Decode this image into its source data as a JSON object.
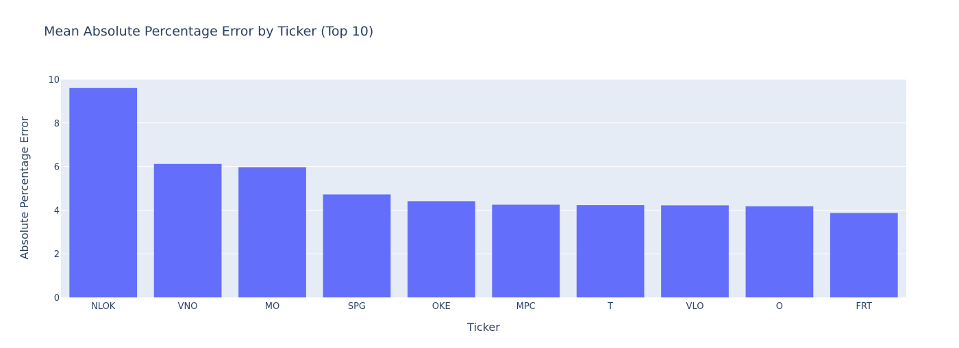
{
  "chart_data": {
    "type": "bar",
    "title": "Mean Absolute Percentage Error by Ticker (Top 10)",
    "xlabel": "Ticker",
    "ylabel": "Absolute Percentage Error",
    "categories": [
      "NLOK",
      "VNO",
      "MO",
      "SPG",
      "OKE",
      "MPC",
      "T",
      "VLO",
      "O",
      "FRT"
    ],
    "values": [
      9.6,
      6.12,
      5.97,
      4.72,
      4.41,
      4.25,
      4.23,
      4.22,
      4.18,
      3.87
    ],
    "ylim": [
      0,
      10
    ],
    "yticks": [
      0,
      2,
      4,
      6,
      8,
      10
    ],
    "grid": true,
    "colors": {
      "bar": "#636efa",
      "plot_bg": "#e5ecf6",
      "grid": "#ffffff",
      "text": "#2a3f5f"
    }
  }
}
